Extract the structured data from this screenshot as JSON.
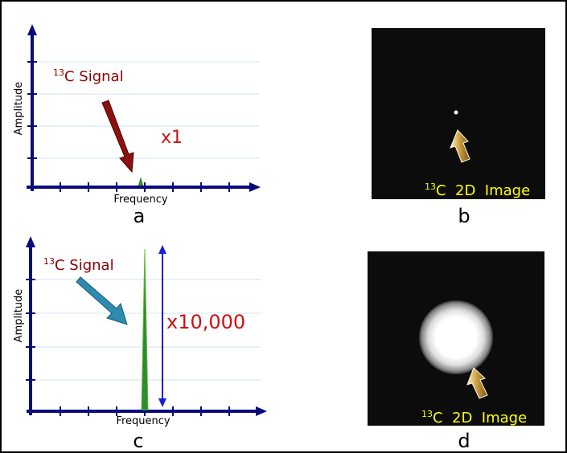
{
  "panels": [
    {
      "label": "a",
      "signal_label": {
        "sup": "13",
        "text": "C Signal"
      },
      "multiplier": "x1",
      "y_axis": "Amplitude",
      "x_axis": "Frequency"
    },
    {
      "label": "b",
      "caption": {
        "sup": "13",
        "text": "C  2D  Image"
      }
    },
    {
      "label": "c",
      "signal_label": {
        "sup": "13",
        "text": "C Signal"
      },
      "multiplier": "x10,000",
      "y_axis": "Amplitude",
      "x_axis": "Frequency"
    },
    {
      "label": "d",
      "caption": {
        "sup": "13",
        "text": "C  2D  Image"
      }
    }
  ]
}
